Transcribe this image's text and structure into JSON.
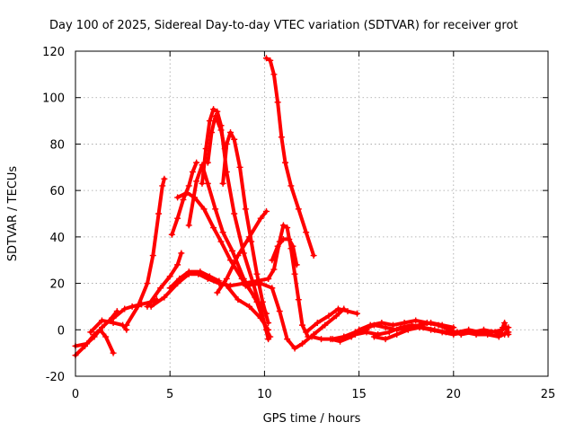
{
  "chart_data": {
    "type": "scatter",
    "title": "Day 100 of 2025, Sidereal Day-to-day VTEC variation (SDTVAR) for receiver grot",
    "xlabel": "GPS time / hours",
    "ylabel": "SDTVAR / TECUs",
    "xlim": [
      0,
      25
    ],
    "ylim": [
      -20,
      120
    ],
    "xticks": [
      0,
      5,
      10,
      15,
      20,
      25
    ],
    "yticks": [
      -20,
      0,
      20,
      40,
      60,
      80,
      100,
      120
    ],
    "grid": true,
    "marker": "+",
    "color": "#ff0000",
    "series": [
      {
        "name": "s1",
        "points": [
          [
            0.0,
            -11
          ],
          [
            0.5,
            -7
          ],
          [
            1.0,
            -2
          ],
          [
            1.3,
            0
          ],
          [
            1.6,
            -3
          ],
          [
            2.0,
            -10
          ]
        ]
      },
      {
        "name": "s2",
        "points": [
          [
            0.0,
            -7
          ],
          [
            0.6,
            -6
          ],
          [
            1.0,
            -3
          ],
          [
            1.4,
            1
          ],
          [
            1.8,
            4
          ],
          [
            2.2,
            8
          ]
        ]
      },
      {
        "name": "s3",
        "points": [
          [
            0.8,
            -1
          ],
          [
            1.4,
            4
          ],
          [
            2.0,
            3
          ],
          [
            2.5,
            2
          ],
          [
            2.7,
            0
          ]
        ]
      },
      {
        "name": "s4",
        "points": [
          [
            2.0,
            5
          ],
          [
            2.6,
            9
          ],
          [
            3.0,
            10
          ],
          [
            3.5,
            11
          ],
          [
            4.0,
            12
          ],
          [
            4.3,
            13
          ]
        ]
      },
      {
        "name": "s5",
        "points": [
          [
            2.7,
            2
          ],
          [
            3.3,
            10
          ],
          [
            3.8,
            20
          ],
          [
            4.1,
            32
          ],
          [
            4.4,
            50
          ],
          [
            4.6,
            62
          ],
          [
            4.7,
            65
          ]
        ]
      },
      {
        "name": "s6",
        "points": [
          [
            3.8,
            10
          ],
          [
            4.5,
            18
          ],
          [
            5.0,
            23
          ],
          [
            5.4,
            28
          ],
          [
            5.6,
            33
          ]
        ]
      },
      {
        "name": "s7",
        "points": [
          [
            4.0,
            10
          ],
          [
            4.7,
            14
          ],
          [
            5.4,
            20
          ],
          [
            6.0,
            24
          ],
          [
            6.5,
            24
          ],
          [
            7.0,
            22
          ],
          [
            7.6,
            20
          ],
          [
            8.2,
            19
          ],
          [
            8.9,
            20
          ],
          [
            9.6,
            21
          ],
          [
            10.2,
            22
          ]
        ]
      },
      {
        "name": "s8",
        "points": [
          [
            5.0,
            18
          ],
          [
            5.5,
            22
          ],
          [
            6.0,
            25
          ],
          [
            6.6,
            25
          ],
          [
            7.1,
            23
          ],
          [
            7.6,
            21
          ]
        ]
      },
      {
        "name": "s9",
        "points": [
          [
            5.1,
            41
          ],
          [
            5.4,
            48
          ],
          [
            5.7,
            56
          ],
          [
            6.0,
            62
          ],
          [
            6.2,
            68
          ],
          [
            6.4,
            72
          ]
        ]
      },
      {
        "name": "s10",
        "points": [
          [
            5.4,
            57
          ],
          [
            5.9,
            59
          ],
          [
            6.3,
            57
          ],
          [
            6.8,
            52
          ],
          [
            7.3,
            44
          ],
          [
            7.7,
            38
          ],
          [
            8.2,
            30
          ],
          [
            8.8,
            22
          ],
          [
            9.5,
            14
          ],
          [
            10.1,
            7
          ]
        ]
      },
      {
        "name": "s11",
        "points": [
          [
            6.0,
            45
          ],
          [
            6.4,
            64
          ],
          [
            6.7,
            71
          ],
          [
            7.0,
            63
          ],
          [
            7.4,
            52
          ],
          [
            7.8,
            42
          ],
          [
            8.3,
            34
          ],
          [
            8.9,
            22
          ],
          [
            9.6,
            12
          ],
          [
            10.1,
            0
          ],
          [
            10.3,
            -3
          ]
        ]
      },
      {
        "name": "s12",
        "points": [
          [
            6.7,
            63
          ],
          [
            6.9,
            78
          ],
          [
            7.1,
            90
          ],
          [
            7.3,
            95
          ],
          [
            7.5,
            94
          ],
          [
            7.7,
            88
          ],
          [
            8.0,
            68
          ],
          [
            8.4,
            50
          ],
          [
            8.9,
            33
          ],
          [
            9.4,
            20
          ],
          [
            9.9,
            6
          ],
          [
            10.2,
            -4
          ]
        ]
      },
      {
        "name": "s13",
        "points": [
          [
            7.0,
            72
          ],
          [
            7.2,
            85
          ],
          [
            7.4,
            92
          ],
          [
            7.7,
            86
          ],
          [
            7.9,
            78
          ]
        ]
      },
      {
        "name": "s14",
        "points": [
          [
            7.8,
            63
          ],
          [
            8.0,
            80
          ],
          [
            8.2,
            85
          ],
          [
            8.4,
            82
          ],
          [
            8.7,
            70
          ],
          [
            9.0,
            52
          ],
          [
            9.3,
            38
          ],
          [
            9.6,
            24
          ],
          [
            9.9,
            12
          ],
          [
            10.2,
            3
          ]
        ]
      },
      {
        "name": "s15",
        "points": [
          [
            7.5,
            16
          ],
          [
            8.0,
            22
          ],
          [
            8.6,
            32
          ],
          [
            9.2,
            40
          ],
          [
            9.8,
            48
          ],
          [
            10.1,
            51
          ]
        ]
      },
      {
        "name": "s16",
        "points": [
          [
            8.0,
            19
          ],
          [
            8.6,
            13
          ],
          [
            9.2,
            10
          ],
          [
            9.8,
            5
          ],
          [
            10.2,
            0
          ]
        ]
      },
      {
        "name": "s17",
        "points": [
          [
            10.1,
            117
          ],
          [
            10.3,
            116
          ],
          [
            10.5,
            110
          ],
          [
            10.7,
            98
          ],
          [
            10.9,
            83
          ],
          [
            11.1,
            72
          ],
          [
            11.4,
            62
          ],
          [
            11.8,
            52
          ],
          [
            12.2,
            42
          ],
          [
            12.6,
            32
          ]
        ]
      },
      {
        "name": "s18",
        "points": [
          [
            10.2,
            22
          ],
          [
            10.5,
            26
          ],
          [
            10.8,
            38
          ],
          [
            11.0,
            45
          ],
          [
            11.2,
            44
          ],
          [
            11.4,
            35
          ],
          [
            11.6,
            24
          ],
          [
            11.8,
            13
          ],
          [
            12.0,
            2
          ],
          [
            12.3,
            -3
          ]
        ]
      },
      {
        "name": "s19",
        "points": [
          [
            10.4,
            30
          ],
          [
            10.7,
            36
          ],
          [
            11.0,
            39
          ],
          [
            11.3,
            39
          ],
          [
            11.5,
            36
          ],
          [
            11.7,
            28
          ]
        ]
      },
      {
        "name": "s20",
        "points": [
          [
            9.0,
            19
          ],
          [
            9.8,
            20
          ],
          [
            10.4,
            18
          ],
          [
            10.8,
            8
          ],
          [
            11.2,
            -4
          ],
          [
            11.6,
            -8
          ],
          [
            12.0,
            -6
          ],
          [
            12.6,
            -2
          ],
          [
            13.2,
            2
          ],
          [
            13.8,
            6
          ],
          [
            14.2,
            9
          ]
        ]
      },
      {
        "name": "s21",
        "points": [
          [
            12.2,
            -1
          ],
          [
            12.8,
            3
          ],
          [
            13.4,
            6
          ],
          [
            13.9,
            9
          ],
          [
            14.4,
            8
          ],
          [
            14.9,
            7
          ]
        ]
      },
      {
        "name": "s22",
        "points": [
          [
            12.5,
            -3
          ],
          [
            13.0,
            -4
          ],
          [
            13.6,
            -4
          ],
          [
            14.2,
            -3
          ],
          [
            14.8,
            -1
          ],
          [
            15.4,
            0
          ]
        ]
      },
      {
        "name": "s23",
        "points": [
          [
            13.5,
            -4
          ],
          [
            14.0,
            -5
          ],
          [
            14.6,
            -3
          ],
          [
            15.2,
            0
          ],
          [
            15.8,
            2
          ],
          [
            16.4,
            1
          ],
          [
            17.0,
            0
          ],
          [
            17.6,
            1
          ],
          [
            18.2,
            2
          ],
          [
            18.8,
            3
          ],
          [
            19.4,
            2
          ],
          [
            20.0,
            1
          ]
        ]
      },
      {
        "name": "s24",
        "points": [
          [
            14.2,
            -3
          ],
          [
            14.8,
            -2
          ],
          [
            15.4,
            -1
          ],
          [
            16.0,
            -2
          ],
          [
            16.6,
            -1
          ],
          [
            17.2,
            1
          ],
          [
            17.8,
            2
          ],
          [
            18.4,
            1
          ],
          [
            19.0,
            0
          ],
          [
            19.6,
            -1
          ],
          [
            20.2,
            -1
          ],
          [
            20.8,
            0
          ],
          [
            21.4,
            -1
          ],
          [
            22.0,
            -1
          ],
          [
            22.6,
            0
          ],
          [
            22.9,
            1
          ]
        ]
      },
      {
        "name": "s25",
        "points": [
          [
            15.0,
            0
          ],
          [
            15.6,
            2
          ],
          [
            16.2,
            3
          ],
          [
            16.8,
            2
          ],
          [
            17.4,
            3
          ],
          [
            18.0,
            4
          ],
          [
            18.6,
            3
          ],
          [
            19.2,
            2
          ],
          [
            19.8,
            0
          ],
          [
            20.4,
            -2
          ],
          [
            21.0,
            -1
          ],
          [
            21.6,
            0
          ],
          [
            22.2,
            -1
          ],
          [
            22.7,
            -2
          ]
        ]
      },
      {
        "name": "s26",
        "points": [
          [
            15.8,
            -3
          ],
          [
            16.4,
            -4
          ],
          [
            17.0,
            -2
          ],
          [
            17.6,
            0
          ],
          [
            18.2,
            1
          ],
          [
            18.8,
            0
          ],
          [
            19.4,
            -1
          ],
          [
            20.0,
            -2
          ],
          [
            20.6,
            -1
          ],
          [
            21.2,
            -2
          ],
          [
            21.8,
            -2
          ],
          [
            22.4,
            -3
          ],
          [
            22.9,
            -1
          ]
        ]
      },
      {
        "name": "s27",
        "points": [
          [
            22.4,
            -2
          ],
          [
            22.6,
            1
          ],
          [
            22.7,
            3
          ],
          [
            22.8,
            0
          ],
          [
            22.9,
            -2
          ]
        ]
      }
    ]
  }
}
